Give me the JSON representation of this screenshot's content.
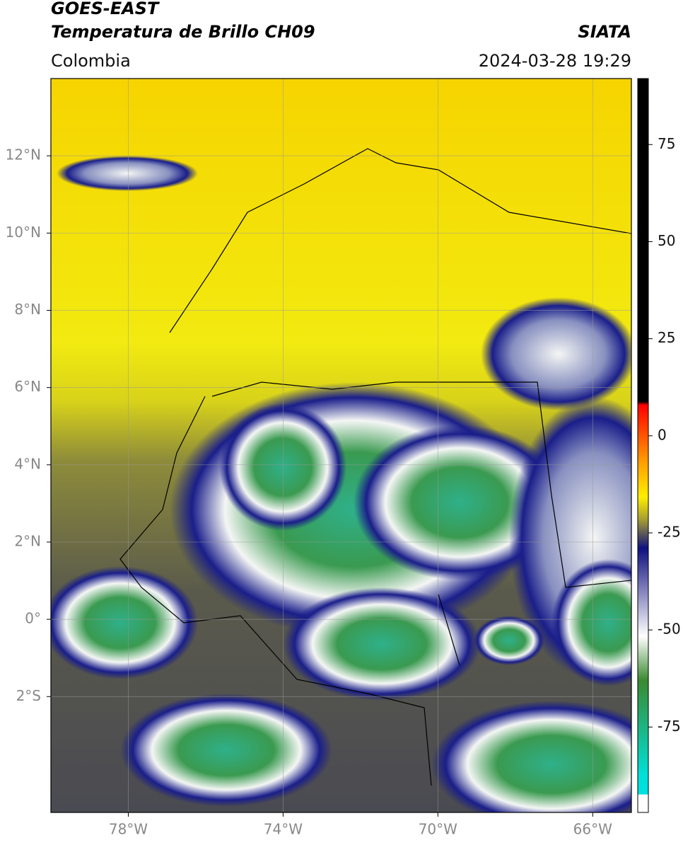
{
  "chart_data": {
    "type": "map",
    "title": "GOES-EAST",
    "subtitle": "Temperatura de Brillo CH09",
    "source": "SIATA",
    "region": "Colombia",
    "datetime": "2024-03-28 19:29",
    "xlim": [
      -80,
      -65
    ],
    "ylim": [
      -5,
      14
    ],
    "xticks": [
      {
        "value": -78,
        "label": "78°W"
      },
      {
        "value": -74,
        "label": "74°W"
      },
      {
        "value": -70,
        "label": "70°W"
      },
      {
        "value": -66,
        "label": "66°W"
      }
    ],
    "yticks": [
      {
        "value": 12,
        "label": "12°N"
      },
      {
        "value": 10,
        "label": "10°N"
      },
      {
        "value": 8,
        "label": "8°N"
      },
      {
        "value": 6,
        "label": "6°N"
      },
      {
        "value": 4,
        "label": "4°N"
      },
      {
        "value": 2,
        "label": "2°N"
      },
      {
        "value": 0,
        "label": "0°"
      },
      {
        "value": -2,
        "label": "2°S"
      }
    ],
    "grid": true,
    "colorbar": {
      "lim": [
        -97,
        92
      ],
      "ticks": [
        75,
        50,
        25,
        0,
        -25,
        -50,
        -75
      ]
    }
  }
}
